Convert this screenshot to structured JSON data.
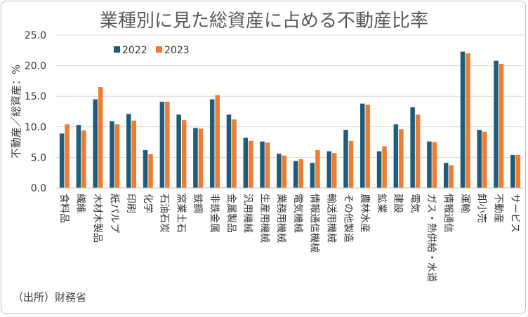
{
  "chart_data": {
    "type": "bar",
    "title": "業種別に見た総資産に占める不動産比率",
    "ylabel": "不動産／総資産：%",
    "xlabel": "",
    "ylim": [
      0,
      25
    ],
    "yticks": [
      "0.0",
      "5.0",
      "10.0",
      "15.0",
      "20.0",
      "25.0"
    ],
    "legend_position": "top-left",
    "source": "（出所）財務省",
    "categories": [
      "食料品",
      "繊維",
      "木材木製品",
      "紙パルプ",
      "印刷",
      "化学",
      "石油石炭",
      "窯業土石",
      "鉄鋼",
      "非鉄金属",
      "金属製品",
      "汎用機械",
      "生産用機械",
      "業務用機械",
      "電気機械",
      "情報通信機械",
      "輸送用機械",
      "その他製造",
      "農林水産",
      "鉱業",
      "建設",
      "電気",
      "ガス・熱供給・水道",
      "情報通信",
      "運輸",
      "卸小売",
      "不動産",
      "サービス"
    ],
    "series": [
      {
        "name": "2022",
        "color": "#1f5c7a",
        "values": [
          8.9,
          10.3,
          14.5,
          10.9,
          12.1,
          6.2,
          14.1,
          12.0,
          9.8,
          14.5,
          12.0,
          8.2,
          7.6,
          5.6,
          4.4,
          4.1,
          6.0,
          9.5,
          13.8,
          6.0,
          10.4,
          13.2,
          7.6,
          4.1,
          22.3,
          9.5,
          20.8,
          5.4
        ]
      },
      {
        "name": "2023",
        "color": "#ee7c31",
        "values": [
          10.4,
          9.4,
          16.5,
          10.4,
          11.0,
          5.5,
          14.1,
          11.1,
          9.7,
          15.2,
          11.2,
          7.7,
          7.4,
          5.3,
          4.7,
          6.2,
          5.7,
          7.7,
          13.6,
          6.8,
          9.6,
          12.0,
          7.5,
          3.7,
          22.0,
          9.2,
          20.3,
          5.4
        ]
      }
    ]
  }
}
